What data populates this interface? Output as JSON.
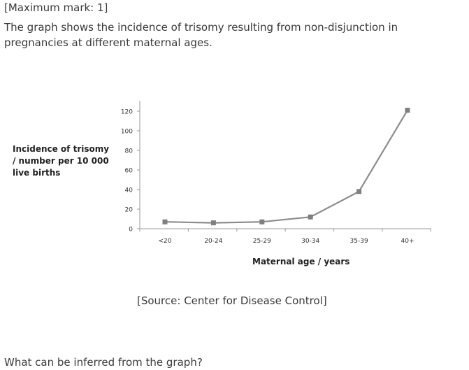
{
  "question": {
    "mark": "[Maximum mark: 1]",
    "intro": "The graph shows the incidence of trisomy resulting from non-disjunction in pregnancies at different maternal ages.",
    "source": "[Source: Center for Disease Control]",
    "prompt": "What can be inferred from the graph?"
  },
  "chart_data": {
    "type": "line",
    "title": "",
    "xlabel": "Maternal age / years",
    "ylabel_lines": [
      "Incidence of trisomy",
      "/ number per 10 000",
      "live births"
    ],
    "categories": [
      "<20",
      "20-24",
      "25-29",
      "30-34",
      "35-39",
      "40+"
    ],
    "series": [
      {
        "values": [
          7,
          6,
          7,
          12,
          38,
          121
        ]
      }
    ],
    "yticks": [
      0,
      20,
      40,
      60,
      80,
      100,
      120
    ],
    "ylim": [
      0,
      120
    ],
    "grid": false,
    "legend": "none",
    "line_color": "#8c8c8c",
    "marker_color": "#7f7f7f"
  }
}
